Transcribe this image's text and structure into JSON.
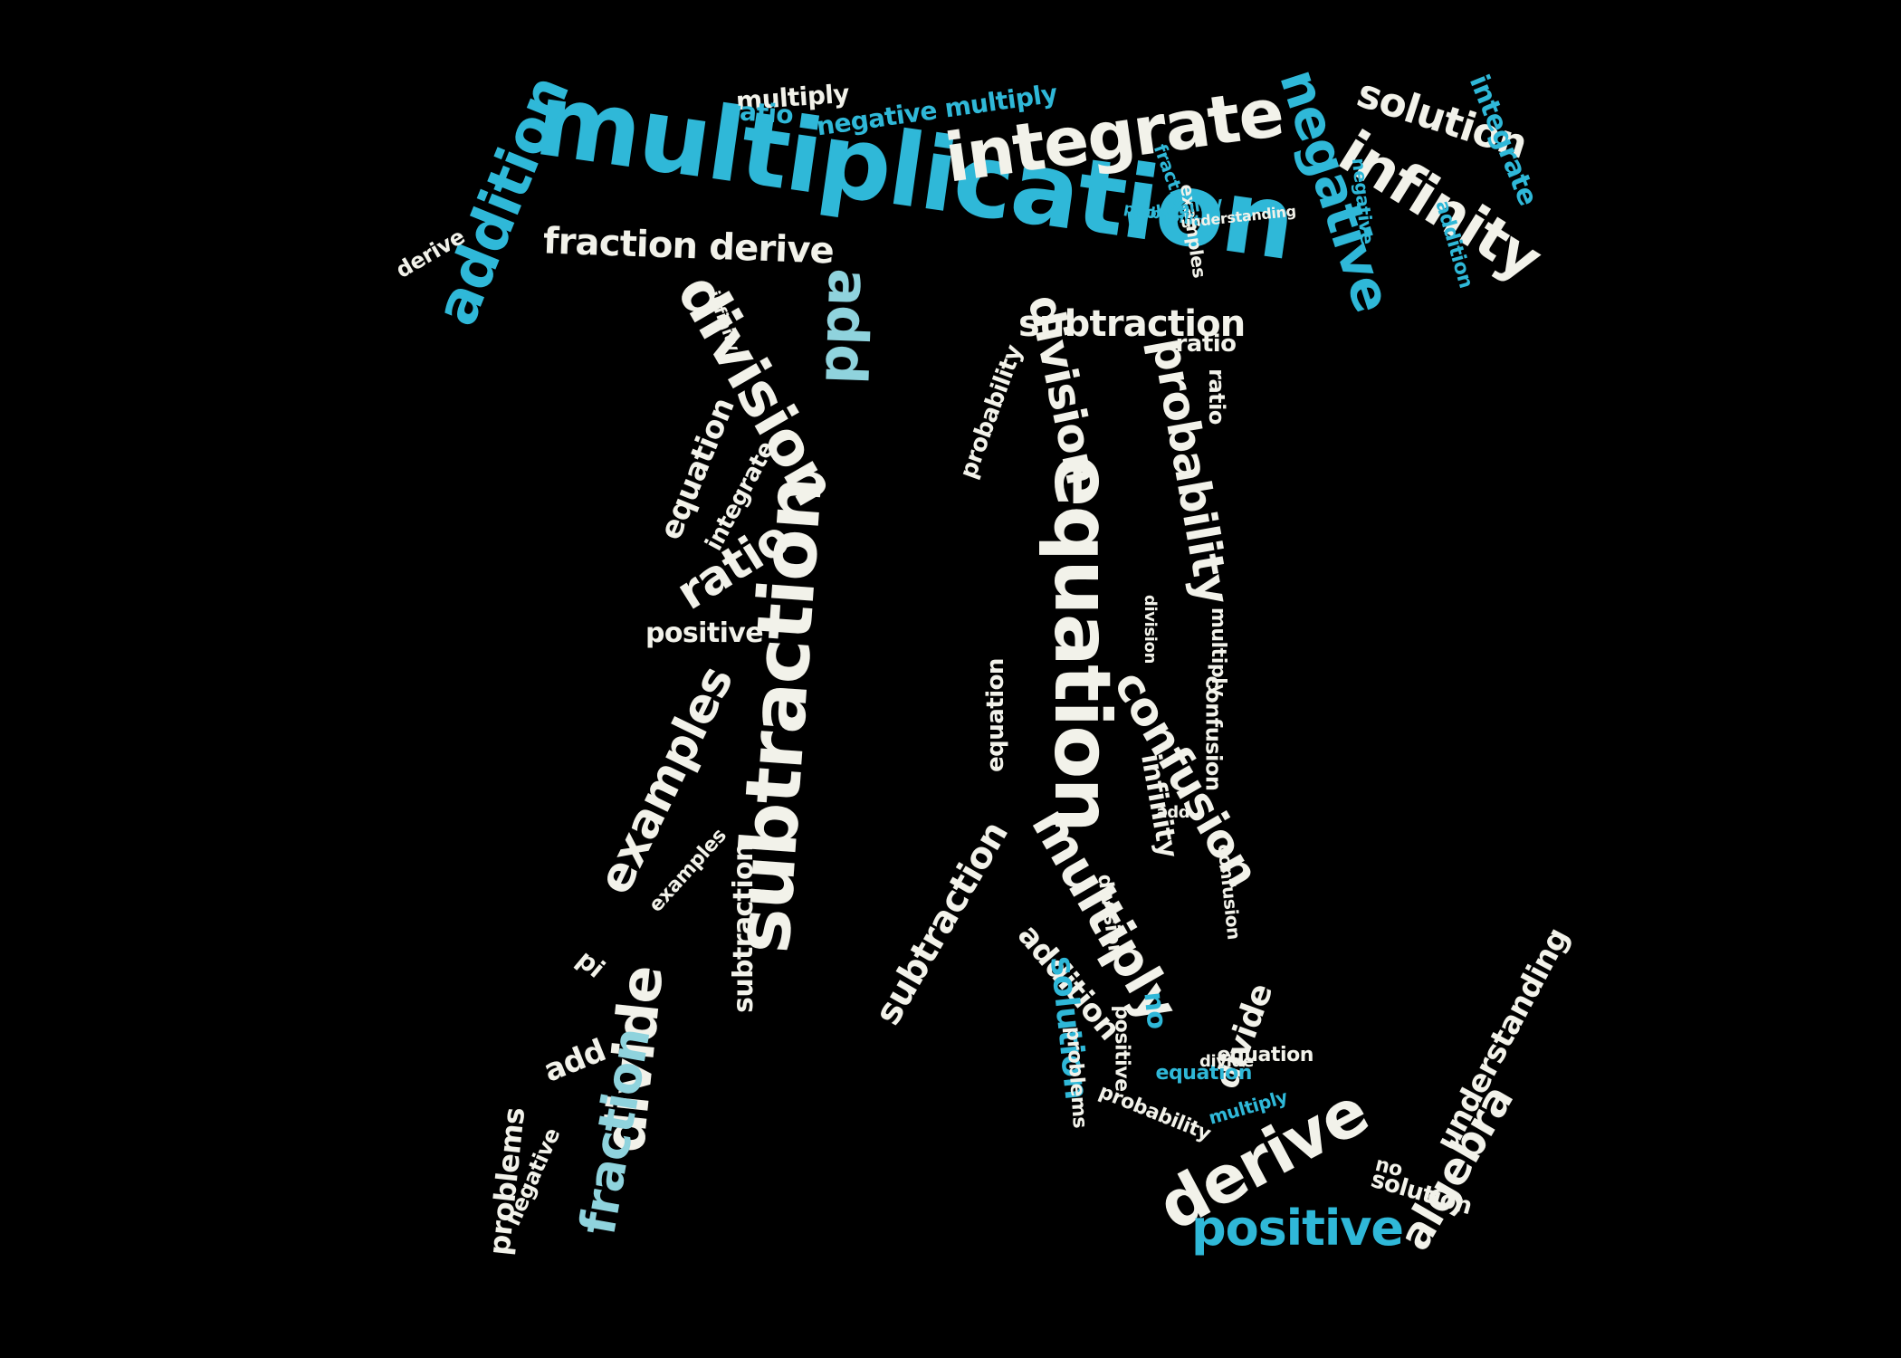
{
  "palette": {
    "background": "#000000",
    "light": "#f2f2ea",
    "cyan": "#2fb8d8",
    "teal": "#8fd3dd"
  },
  "words": [
    {
      "text": "multiplication",
      "tone": "cyan"
    },
    {
      "text": "integrate",
      "tone": "light"
    },
    {
      "text": "negative",
      "tone": "cyan"
    },
    {
      "text": "infinity",
      "tone": "light"
    },
    {
      "text": "solution",
      "tone": "light"
    },
    {
      "text": "addition",
      "tone": "cyan"
    },
    {
      "text": "fraction derive",
      "tone": "light"
    },
    {
      "text": "multiply",
      "tone": "light"
    },
    {
      "text": "integrate",
      "tone": "cyan"
    },
    {
      "text": "derive",
      "tone": "light"
    },
    {
      "text": "division",
      "tone": "light"
    },
    {
      "text": "add",
      "tone": "teal"
    },
    {
      "text": "subtraction",
      "tone": "light"
    },
    {
      "text": "probability",
      "tone": "light"
    },
    {
      "text": "ratio",
      "tone": "cyan"
    },
    {
      "text": "negative multiply",
      "tone": "cyan"
    },
    {
      "text": "subtraction",
      "tone": "light"
    },
    {
      "text": "equation",
      "tone": "light"
    },
    {
      "text": "ratio",
      "tone": "light"
    },
    {
      "text": "equation",
      "tone": "light"
    },
    {
      "text": "integrate",
      "tone": "light"
    },
    {
      "text": "positive",
      "tone": "light"
    },
    {
      "text": "examples",
      "tone": "light"
    },
    {
      "text": "subtraction",
      "tone": "light"
    },
    {
      "text": "divide",
      "tone": "light"
    },
    {
      "text": "fraction",
      "tone": "teal"
    },
    {
      "text": "problems",
      "tone": "light"
    },
    {
      "text": "add",
      "tone": "light"
    },
    {
      "text": "equation",
      "tone": "light"
    },
    {
      "text": "probability",
      "tone": "light"
    },
    {
      "text": "pi",
      "tone": "light"
    },
    {
      "text": "confusion",
      "tone": "light"
    },
    {
      "text": "division",
      "tone": "light"
    },
    {
      "text": "multiply",
      "tone": "light"
    },
    {
      "text": "addition",
      "tone": "light"
    },
    {
      "text": "infinity",
      "tone": "light"
    },
    {
      "text": "solution",
      "tone": "cyan"
    },
    {
      "text": "no",
      "tone": "cyan"
    },
    {
      "text": "derive",
      "tone": "light"
    },
    {
      "text": "divide",
      "tone": "light"
    },
    {
      "text": "positive",
      "tone": "cyan"
    },
    {
      "text": "algebra",
      "tone": "light"
    },
    {
      "text": "understanding",
      "tone": "light"
    },
    {
      "text": "equation",
      "tone": "cyan"
    },
    {
      "text": "solution",
      "tone": "light"
    },
    {
      "text": "no",
      "tone": "light"
    },
    {
      "text": "probability",
      "tone": "light"
    },
    {
      "text": "division",
      "tone": "light"
    },
    {
      "text": "problems",
      "tone": "light"
    },
    {
      "text": "positive",
      "tone": "light"
    },
    {
      "text": "negative",
      "tone": "cyan"
    },
    {
      "text": "fraction",
      "tone": "cyan"
    },
    {
      "text": "examples",
      "tone": "light"
    },
    {
      "text": "addition",
      "tone": "cyan"
    },
    {
      "text": "confusion",
      "tone": "light"
    },
    {
      "text": "probability",
      "tone": "cyan"
    },
    {
      "text": "subtraction",
      "tone": "light"
    },
    {
      "text": "multiply",
      "tone": "light"
    },
    {
      "text": "add",
      "tone": "light"
    },
    {
      "text": "equation",
      "tone": "light"
    },
    {
      "text": "ratio",
      "tone": "light"
    },
    {
      "text": "divide",
      "tone": "light"
    },
    {
      "text": "negative",
      "tone": "light"
    },
    {
      "text": "ratio",
      "tone": "light"
    },
    {
      "text": "understanding",
      "tone": "light"
    },
    {
      "text": "multiply",
      "tone": "cyan"
    },
    {
      "text": "confusion",
      "tone": "light"
    },
    {
      "text": "division",
      "tone": "light"
    },
    {
      "text": "infinity",
      "tone": "light"
    },
    {
      "text": "examples",
      "tone": "light"
    },
    {
      "text": "probability",
      "tone": "cyan"
    }
  ]
}
